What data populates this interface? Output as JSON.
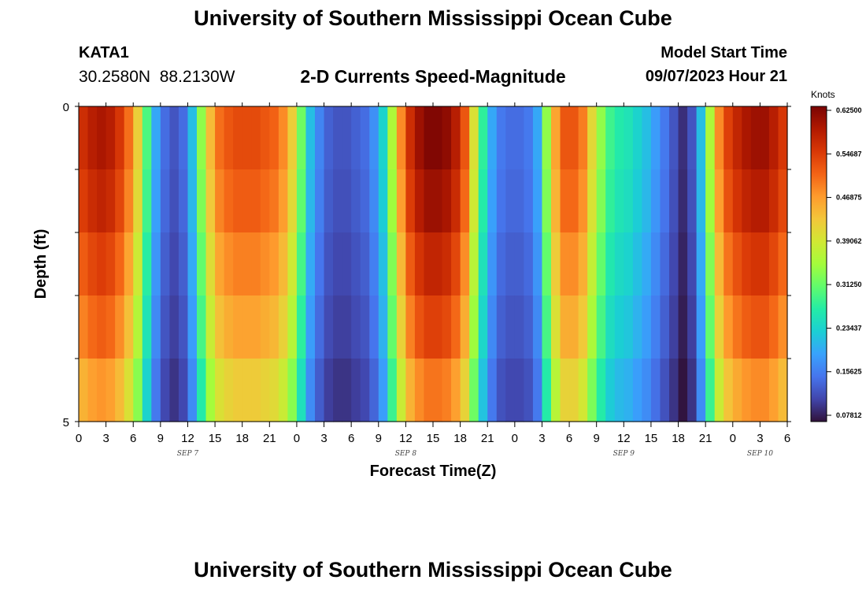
{
  "header": {
    "title": "University of Southern Mississippi Ocean Cube",
    "station": "KATA1",
    "coords": "30.2580N  88.2130W",
    "subtitle": "2-D Currents Speed-Magnitude",
    "model_start_label": "Model Start Time",
    "model_start_value": "09/07/2023 Hour 21"
  },
  "footer": {
    "title": "University of Southern Mississippi Ocean Cube"
  },
  "colors": {
    "scale": [
      "#30123b",
      "#4145ab",
      "#4675ed",
      "#39a2fc",
      "#1bcfd4",
      "#24eca6",
      "#61fc6c",
      "#a4fc3b",
      "#d1e834",
      "#f3c63a",
      "#fe9b2d",
      "#f36315",
      "#d93806",
      "#b11901",
      "#7a0403"
    ]
  },
  "chart_data": {
    "type": "heatmap",
    "title": "2-D Currents Speed-Magnitude",
    "xlabel": "Forecast Time(Z)",
    "ylabel": "Depth (ft)",
    "colorbar_label": "Knots",
    "x_start_hour": 0,
    "hours": 78,
    "x_ticks": [
      "0",
      "3",
      "6",
      "9",
      "12",
      "15",
      "18",
      "21",
      "0",
      "3",
      "6",
      "9",
      "12",
      "15",
      "18",
      "21",
      "0",
      "3",
      "6",
      "9",
      "12",
      "15",
      "18",
      "21",
      "0",
      "3",
      "6"
    ],
    "date_labels": [
      {
        "text": "SEP 7",
        "hour": 12
      },
      {
        "text": "SEP 8",
        "hour": 36
      },
      {
        "text": "SEP 9",
        "hour": 60
      },
      {
        "text": "SEP 10",
        "hour": 75
      }
    ],
    "y_ticks": [
      "0",
      "5"
    ],
    "ylim": [
      0,
      5
    ],
    "depth_layers": [
      0.5,
      1.5,
      2.5,
      3.5,
      4.5
    ],
    "clim": [
      0.078125,
      0.625
    ],
    "colorbar_ticks": [
      "0.62500",
      "0.54687",
      "0.46875",
      "0.39062",
      "0.31250",
      "0.23437",
      "0.15625",
      "0.07812"
    ],
    "surface_speed": [
      0.56,
      0.58,
      0.59,
      0.58,
      0.55,
      0.5,
      0.42,
      0.3,
      0.2,
      0.15,
      0.13,
      0.15,
      0.22,
      0.34,
      0.44,
      0.5,
      0.52,
      0.53,
      0.53,
      0.53,
      0.52,
      0.51,
      0.48,
      0.42,
      0.32,
      0.22,
      0.17,
      0.14,
      0.13,
      0.13,
      0.14,
      0.15,
      0.18,
      0.24,
      0.36,
      0.48,
      0.56,
      0.6,
      0.62,
      0.62,
      0.61,
      0.58,
      0.52,
      0.4,
      0.28,
      0.2,
      0.16,
      0.15,
      0.15,
      0.16,
      0.2,
      0.34,
      0.46,
      0.52,
      0.52,
      0.49,
      0.41,
      0.34,
      0.29,
      0.27,
      0.26,
      0.24,
      0.22,
      0.19,
      0.16,
      0.13,
      0.1,
      0.13,
      0.22,
      0.36,
      0.48,
      0.54,
      0.57,
      0.59,
      0.6,
      0.6,
      0.58,
      0.55
    ],
    "depth_factors": [
      1.0,
      0.97,
      0.92,
      0.87,
      0.8
    ]
  }
}
